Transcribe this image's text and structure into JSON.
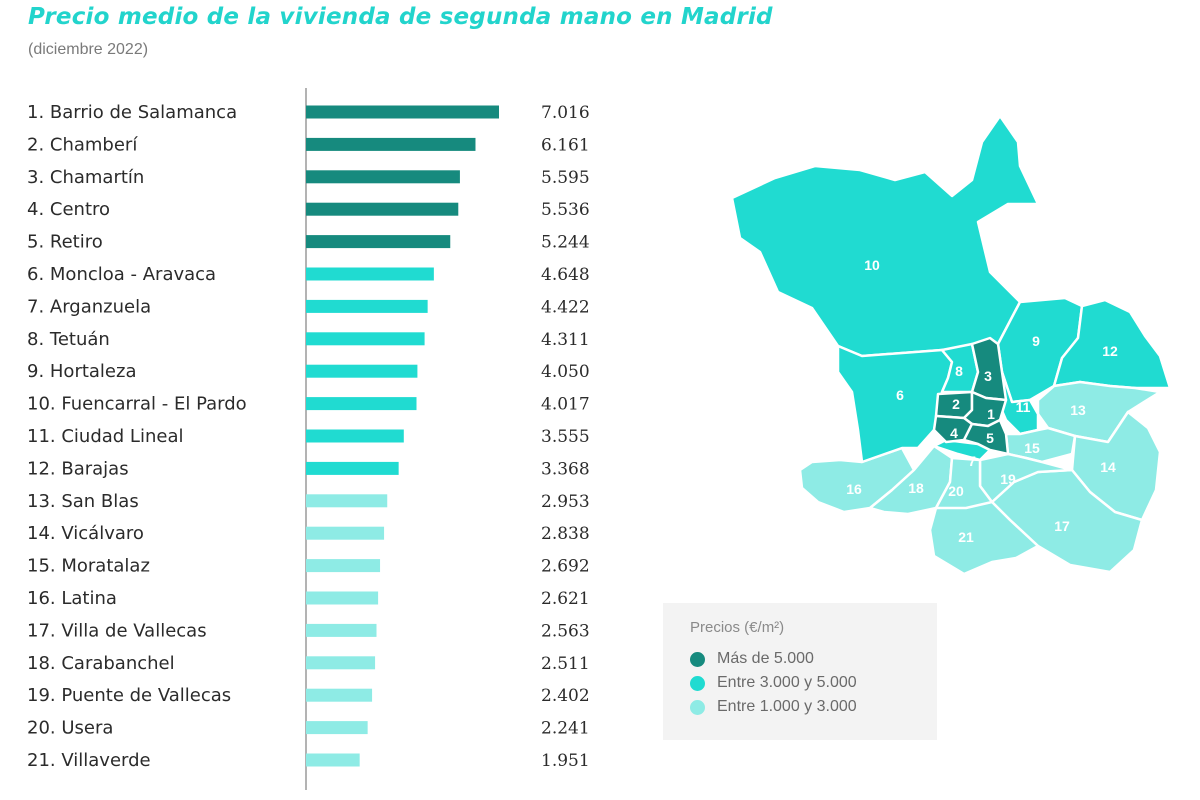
{
  "header": {
    "title": "Precio medio de la vivienda de segunda mano en Madrid",
    "subtitle": "(diciembre 2022)"
  },
  "chart_data": {
    "type": "bar",
    "orientation": "horizontal",
    "categories": [
      "1. Barrio de Salamanca",
      "2. Chamberí",
      "3. Chamartín",
      "4. Centro",
      "5. Retiro",
      "6. Moncloa - Aravaca",
      "7. Arganzuela",
      "8. Tetuán",
      "9. Hortaleza",
      "10. Fuencarral - El Pardo",
      "11. Ciudad Lineal",
      "12. Barajas",
      "13. San Blas",
      "14. Vicálvaro",
      "15. Moratalaz",
      "16. Latina",
      "17. Villa de Vallecas",
      "18. Carabanchel",
      "19. Puente de Vallecas",
      "20. Usera",
      "21. Villaverde"
    ],
    "values": [
      7016,
      6161,
      5595,
      5536,
      5244,
      4648,
      4422,
      4311,
      4050,
      4017,
      3555,
      3368,
      2953,
      2838,
      2692,
      2621,
      2563,
      2511,
      2402,
      2241,
      1951
    ],
    "value_labels": [
      "7.016",
      "6.161",
      "5.595",
      "5.536",
      "5.244",
      "4.648",
      "4.422",
      "4.311",
      "4.050",
      "4.017",
      "3.555",
      "3.368",
      "2.953",
      "2.838",
      "2.692",
      "2.621",
      "2.563",
      "2.511",
      "2.402",
      "2.241",
      "1.951"
    ],
    "title": "Precio medio de la vivienda de segunda mano en Madrid",
    "subtitle": "(diciembre 2022)",
    "xlabel": "",
    "ylabel": "",
    "xlim": [
      0,
      7016
    ],
    "grid": false,
    "unit": "€/m²"
  },
  "colors": {
    "high": "#168a7e",
    "mid": "#20dbd1",
    "low": "#8eebe5",
    "title": "#22d4cc"
  },
  "map": {
    "district_numbers": [
      "1",
      "2",
      "3",
      "4",
      "5",
      "6",
      "7",
      "8",
      "9",
      "10",
      "11",
      "12",
      "13",
      "14",
      "15",
      "16",
      "17",
      "18",
      "19",
      "20",
      "21"
    ]
  },
  "legend": {
    "title": "Precios (€/m²)",
    "items": [
      {
        "label": "Más de 5.000",
        "color": "#168a7e"
      },
      {
        "label": "Entre 3.000 y 5.000",
        "color": "#20dbd1"
      },
      {
        "label": "Entre 1.000 y 3.000",
        "color": "#8eebe5"
      }
    ]
  }
}
